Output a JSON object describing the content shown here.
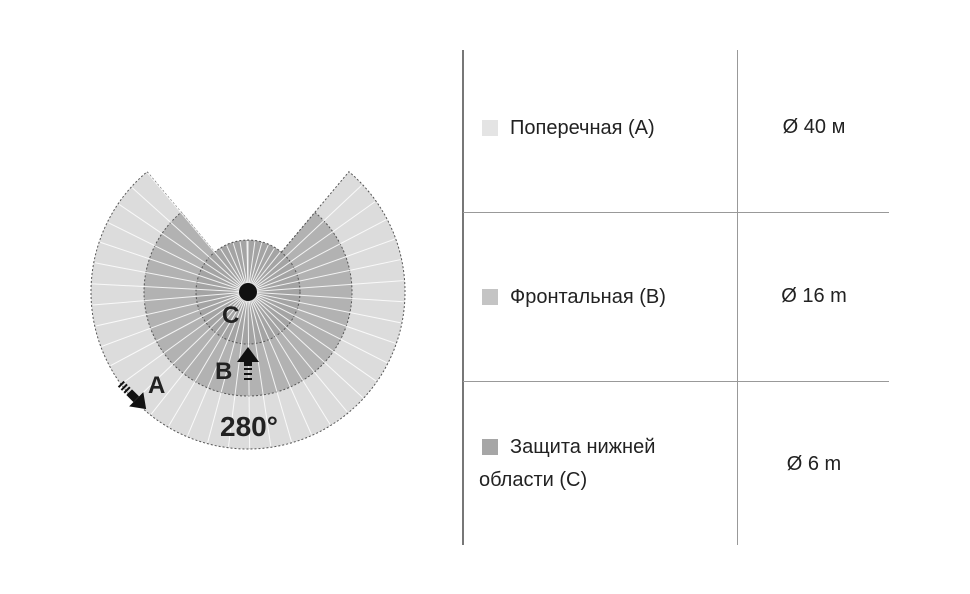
{
  "diagram": {
    "coverage_angle_label": "280°",
    "zone_labels": {
      "a": "A",
      "b": "B",
      "c": "C"
    },
    "colors": {
      "zone_a": "#dcdcdc",
      "zone_b": "#b2b2b2",
      "zone_c": "#a4a4a4",
      "spokes": "#ffffff",
      "outline": "#555555"
    }
  },
  "table": {
    "rows": [
      {
        "label": "Поперечная (A)",
        "value": "Ø 40 м",
        "swatch_color": "#e4e4e4"
      },
      {
        "label": "Фронтальная (B)",
        "value": "Ø 16 m",
        "swatch_color": "#c4c4c4"
      },
      {
        "label": "Защита нижней области (C)",
        "label_line1": "Защита нижней",
        "label_line2": "области (C)",
        "value": "Ø 6 m",
        "swatch_color": "#a6a6a6"
      }
    ]
  }
}
